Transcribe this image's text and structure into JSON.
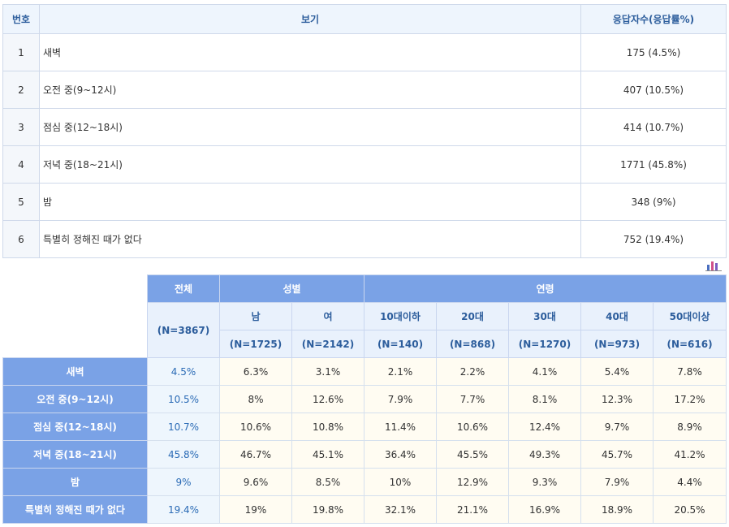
{
  "top": {
    "headers": {
      "num": "번호",
      "option": "보기",
      "resp": "응답자수(응답률%)"
    },
    "rows": [
      {
        "num": "1",
        "label": "새벽",
        "resp": "175 (4.5%)"
      },
      {
        "num": "2",
        "label": "오전 중(9~12시)",
        "resp": "407 (10.5%)"
      },
      {
        "num": "3",
        "label": "점심 중(12~18시)",
        "resp": "414 (10.7%)"
      },
      {
        "num": "4",
        "label": "저녁 중(18~21시)",
        "resp": "1771 (45.8%)"
      },
      {
        "num": "5",
        "label": "밤",
        "resp": "348 (9%)"
      },
      {
        "num": "6",
        "label": "특별히 정해진 때가 없다",
        "resp": "752 (19.4%)"
      }
    ]
  },
  "icons": {
    "chart": "bar-chart-icon"
  },
  "bottom": {
    "header": {
      "total": "전체",
      "gender": "성별",
      "age": "연령",
      "total_n": "(N=3867)",
      "male": "남",
      "female": "여",
      "male_n": "(N=1725)",
      "female_n": "(N=2142)",
      "ages": [
        "10대이하",
        "20대",
        "30대",
        "40대",
        "50대이상"
      ],
      "ages_n": [
        "(N=140)",
        "(N=868)",
        "(N=1270)",
        "(N=973)",
        "(N=616)"
      ]
    },
    "rows": [
      {
        "label": "새벽",
        "total": "4.5%",
        "values": [
          "6.3%",
          "3.1%",
          "2.1%",
          "2.2%",
          "4.1%",
          "5.4%",
          "7.8%"
        ]
      },
      {
        "label": "오전 중(9~12시)",
        "total": "10.5%",
        "values": [
          "8%",
          "12.6%",
          "7.9%",
          "7.7%",
          "8.1%",
          "12.3%",
          "17.2%"
        ]
      },
      {
        "label": "점심 중(12~18시)",
        "total": "10.7%",
        "values": [
          "10.6%",
          "10.8%",
          "11.4%",
          "10.6%",
          "12.4%",
          "9.7%",
          "8.9%"
        ]
      },
      {
        "label": "저녁 중(18~21시)",
        "total": "45.8%",
        "values": [
          "46.7%",
          "45.1%",
          "36.4%",
          "45.5%",
          "49.3%",
          "45.7%",
          "41.2%"
        ]
      },
      {
        "label": "밤",
        "total": "9%",
        "values": [
          "9.6%",
          "8.5%",
          "10%",
          "12.9%",
          "9.3%",
          "7.9%",
          "4.4%"
        ]
      },
      {
        "label": "특별히 정해진 때가 없다",
        "total": "19.4%",
        "values": [
          "19%",
          "19.8%",
          "32.1%",
          "21.1%",
          "16.9%",
          "18.9%",
          "20.5%"
        ]
      }
    ]
  }
}
